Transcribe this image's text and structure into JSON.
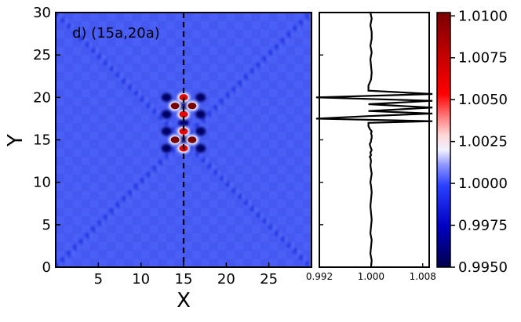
{
  "chart_data": [
    {
      "type": "heatmap",
      "panel_label": "d) (15a,20a)",
      "xlabel": "X",
      "ylabel": "Y",
      "xlim": [
        0,
        30
      ],
      "ylim": [
        0,
        30
      ],
      "x_ticks": [
        5,
        10,
        15,
        20,
        25
      ],
      "y_ticks": [
        0,
        5,
        10,
        15,
        20,
        25,
        30
      ],
      "colormap": "seismic",
      "background_value": 0.9993,
      "cut_line_x": 15,
      "features": {
        "diagonal_lines": [
          {
            "from": [
              0,
              0
            ],
            "to": [
              30,
              30
            ]
          },
          {
            "from": [
              0,
              30
            ],
            "to": [
              30,
              0
            ]
          }
        ],
        "bright_spots": [
          {
            "x": 14,
            "y": 19,
            "value": 1.0105
          },
          {
            "x": 16,
            "y": 19,
            "value": 1.0105
          },
          {
            "x": 14,
            "y": 15,
            "value": 1.0105
          },
          {
            "x": 16,
            "y": 15,
            "value": 1.0105
          },
          {
            "x": 15,
            "y": 20,
            "value": 1.006
          },
          {
            "x": 15,
            "y": 18,
            "value": 1.006
          },
          {
            "x": 15,
            "y": 16,
            "value": 1.006
          },
          {
            "x": 15,
            "y": 14,
            "value": 1.006
          }
        ],
        "dark_spots": [
          {
            "x": 13,
            "y": 20,
            "value": 0.9955
          },
          {
            "x": 17,
            "y": 20,
            "value": 0.9955
          },
          {
            "x": 13,
            "y": 18,
            "value": 0.9955
          },
          {
            "x": 17,
            "y": 18,
            "value": 0.9955
          },
          {
            "x": 13,
            "y": 16,
            "value": 0.9955
          },
          {
            "x": 17,
            "y": 16,
            "value": 0.9955
          },
          {
            "x": 13,
            "y": 14,
            "value": 0.9955
          },
          {
            "x": 17,
            "y": 14,
            "value": 0.9955
          },
          {
            "x": 15,
            "y": 19,
            "value": 0.996
          },
          {
            "x": 15,
            "y": 17,
            "value": 0.996
          },
          {
            "x": 15,
            "y": 15,
            "value": 0.996
          }
        ]
      }
    },
    {
      "type": "line",
      "xlim": [
        0.992,
        1.009
      ],
      "ylim": [
        0,
        30
      ],
      "x_ticks": [
        "0.992",
        "1.000",
        "1.008"
      ],
      "series": [
        {
          "x": [
            1.0,
            1.0001,
            0.9999,
            1.0,
            1.0001,
            0.9999,
            1.0,
            1.0001,
            1.0,
            0.9999,
            1.0,
            1.0001,
            1.0,
            0.9999,
            1.0,
            1.0001,
            1.0,
            0.9999,
            1.0,
            0.9999,
            0.9998,
            1.0,
            0.9999,
            1.0001,
            1.0,
            0.9999,
            0.9998,
            1.0,
            1.0,
            1.0001,
            1.0001,
            1.0,
            1.0001,
            0.9998,
            0.9996,
            0.9996,
            1.0095,
            0.9915,
            0.9996,
            1.0095,
            0.9996,
            1.0095,
            0.9996,
            1.0095,
            0.9915,
            1.0095,
            0.9996,
            0.9996,
            1.0,
            1.0001,
            1.0,
            0.9999,
            1.0001,
            0.9999,
            1.0001,
            1.0001,
            0.9999,
            1.0001,
            0.9999,
            1.0001,
            1.0001,
            1.0,
            1.0001
          ],
          "y": [
            0,
            0.8,
            1.6,
            2.4,
            3.2,
            4,
            4.8,
            5.6,
            6.4,
            7.2,
            8,
            8.8,
            9.6,
            10,
            10.5,
            11,
            11.5,
            12,
            12.5,
            12.9,
            13,
            13.2,
            13.5,
            13.8,
            14,
            14.2,
            14.5,
            14.8,
            15,
            15.2,
            15.5,
            15.8,
            16,
            16.3,
            16.6,
            17,
            17.2,
            17.5,
            17.8,
            18.1,
            18.4,
            18.8,
            19.2,
            19.6,
            20.0,
            20.4,
            20.8,
            21.4,
            22.1,
            22.9,
            23.7,
            24.5,
            25.3,
            26.1,
            26.9,
            27.7,
            28.5,
            29.3,
            30,
            30,
            30,
            30,
            30
          ]
        }
      ]
    },
    {
      "type": "colorbar",
      "colormap": "seismic",
      "range": [
        0.995,
        1.0102
      ],
      "ticks": [
        "0.9950",
        "0.9975",
        "1.0000",
        "1.0025",
        "1.0050",
        "1.0075",
        "1.0100"
      ]
    }
  ]
}
